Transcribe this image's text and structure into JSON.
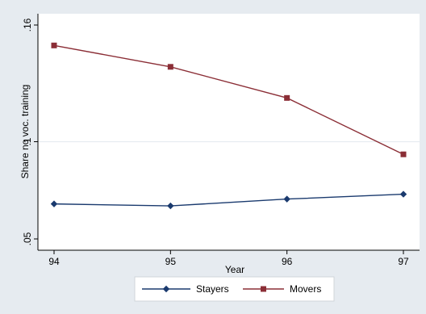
{
  "chart_data": {
    "type": "line",
    "xlabel": "Year",
    "ylabel": "Share no voc. training",
    "x": [
      94,
      95,
      96,
      97
    ],
    "x_tick_labels": [
      "94",
      "95",
      "96",
      "97"
    ],
    "xlim": [
      94,
      97
    ],
    "ylim": [
      0.05,
      0.16
    ],
    "y_ticks": [
      0.05,
      0.1,
      0.16
    ],
    "y_tick_labels": [
      ".05",
      ".1",
      ".16"
    ],
    "grid": "horizontal",
    "legend_position": "bottom",
    "series": [
      {
        "name": "Stayers",
        "values": [
          0.068,
          0.067,
          0.0705,
          0.073
        ],
        "color": "#1a3a6e",
        "marker": "diamond"
      },
      {
        "name": "Movers",
        "values": [
          0.1495,
          0.1385,
          0.1225,
          0.0935
        ],
        "color": "#8b2e36",
        "marker": "square"
      }
    ]
  },
  "style": {
    "background": "#e6ebf0",
    "plot_background": "#ffffff",
    "grid_color": "#e6ebf0"
  }
}
